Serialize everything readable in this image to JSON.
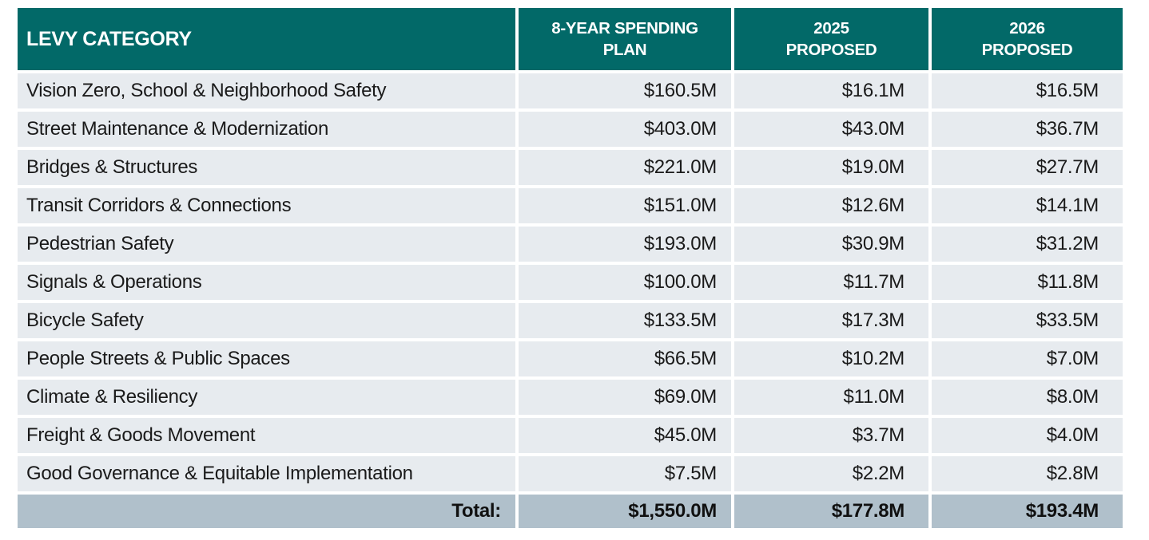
{
  "colors": {
    "header-bg": "#026968",
    "header-text": "#ffffff",
    "row-bg": "#e7ebef",
    "total-bg": "#b0c0cb",
    "body-text": "#1a1a1a",
    "page-bg": "#ffffff"
  },
  "table": {
    "header": {
      "levy_category": "LEVY CATEGORY",
      "col2_line1": "8-YEAR SPENDING",
      "col2_line2": "PLAN",
      "col3_line1": "2025",
      "col3_line2": "PROPOSED",
      "col4_line1": "2026",
      "col4_line2": "PROPOSED"
    },
    "rows": [
      {
        "category": "Vision Zero, School & Neighborhood Safety",
        "plan": "$160.5M",
        "p2025": "$16.1M",
        "p2026": "$16.5M"
      },
      {
        "category": "Street Maintenance & Modernization",
        "plan": "$403.0M",
        "p2025": "$43.0M",
        "p2026": "$36.7M"
      },
      {
        "category": "Bridges & Structures",
        "plan": "$221.0M",
        "p2025": "$19.0M",
        "p2026": "$27.7M"
      },
      {
        "category": "Transit Corridors & Connections",
        "plan": "$151.0M",
        "p2025": "$12.6M",
        "p2026": "$14.1M"
      },
      {
        "category": "Pedestrian Safety",
        "plan": "$193.0M",
        "p2025": "$30.9M",
        "p2026": "$31.2M"
      },
      {
        "category": "Signals & Operations",
        "plan": "$100.0M",
        "p2025": "$11.7M",
        "p2026": "$11.8M"
      },
      {
        "category": "Bicycle Safety",
        "plan": "$133.5M",
        "p2025": "$17.3M",
        "p2026": "$33.5M"
      },
      {
        "category": "People Streets & Public Spaces",
        "plan": "$66.5M",
        "p2025": "$10.2M",
        "p2026": "$7.0M"
      },
      {
        "category": "Climate & Resiliency",
        "plan": "$69.0M",
        "p2025": "$11.0M",
        "p2026": "$8.0M"
      },
      {
        "category": "Freight & Goods Movement",
        "plan": "$45.0M",
        "p2025": "$3.7M",
        "p2026": "$4.0M"
      },
      {
        "category": "Good Governance & Equitable Implementation",
        "plan": "$7.5M",
        "p2025": "$2.2M",
        "p2026": "$2.8M"
      }
    ],
    "total": {
      "label": "Total:",
      "plan": "$1,550.0M",
      "p2025": "$177.8M",
      "p2026": "$193.4M"
    }
  },
  "chart_data": {
    "type": "table",
    "columns": [
      "LEVY CATEGORY",
      "8-YEAR SPENDING PLAN",
      "2025 PROPOSED",
      "2026 PROPOSED"
    ],
    "categories": [
      "Vision Zero, School & Neighborhood Safety",
      "Street Maintenance & Modernization",
      "Bridges & Structures",
      "Transit Corridors & Connections",
      "Pedestrian Safety",
      "Signals & Operations",
      "Bicycle Safety",
      "People Streets & Public Spaces",
      "Climate & Resiliency",
      "Freight & Goods Movement",
      "Good Governance & Equitable Implementation"
    ],
    "series": [
      {
        "name": "8-YEAR SPENDING PLAN",
        "values": [
          160.5,
          403.0,
          221.0,
          151.0,
          193.0,
          100.0,
          133.5,
          66.5,
          69.0,
          45.0,
          7.5
        ]
      },
      {
        "name": "2025 PROPOSED",
        "values": [
          16.1,
          43.0,
          19.0,
          12.6,
          30.9,
          11.7,
          17.3,
          10.2,
          11.0,
          3.7,
          2.2
        ]
      },
      {
        "name": "2026 PROPOSED",
        "values": [
          16.5,
          36.7,
          27.7,
          14.1,
          31.2,
          11.8,
          33.5,
          7.0,
          8.0,
          4.0,
          2.8
        ]
      }
    ],
    "totals": {
      "label": "Total:",
      "8_year_spending_plan": 1550.0,
      "2025_proposed": 177.8,
      "2026_proposed": 193.4
    },
    "unit": "$M"
  }
}
